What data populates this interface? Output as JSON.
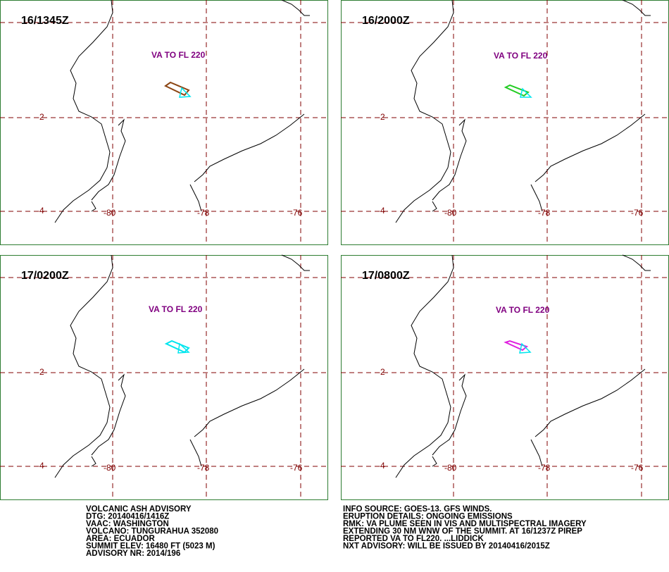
{
  "panels": [
    {
      "title": "16/1345Z",
      "va_label": "VA TO FL 220"
    },
    {
      "title": "16/2000Z",
      "va_label": "VA TO FL 220"
    },
    {
      "title": "17/0200Z",
      "va_label": "VA TO FL 220"
    },
    {
      "title": "17/0800Z",
      "va_label": "VA TO FL 220"
    }
  ],
  "lat_labels": [
    "-2",
    "-4"
  ],
  "lon_labels": [
    "-80",
    "-78",
    "-76"
  ],
  "advisory_left": [
    "VOLCANIC ASH ADVISORY",
    "DTG: 20140416/1416Z",
    "VAAC: WASHINGTON",
    "VOLCANO: TUNGURAHUA 352080",
    "AREA: ECUADOR",
    "SUMMIT ELEV: 16480 FT (5023 M)",
    "ADVISORY NR: 2014/196"
  ],
  "advisory_right": [
    "INFO SOURCE: GOES-13. GFS WINDS.",
    "ERUPTION DETAILS: ONGOING EMISSIONS",
    "RMK: VA PLUME SEEN IN VIS AND MULTISPECTRAL IMAGERY",
    "EXTENDING 30 NM WNW OF THE SUMMIT. AT 16/1237Z PIREP",
    "REPORTED VA TO FL220. ...LIDDICK",
    "NXT ADVISORY: WILL BE ISSUED BY 20140416/2015Z"
  ]
}
